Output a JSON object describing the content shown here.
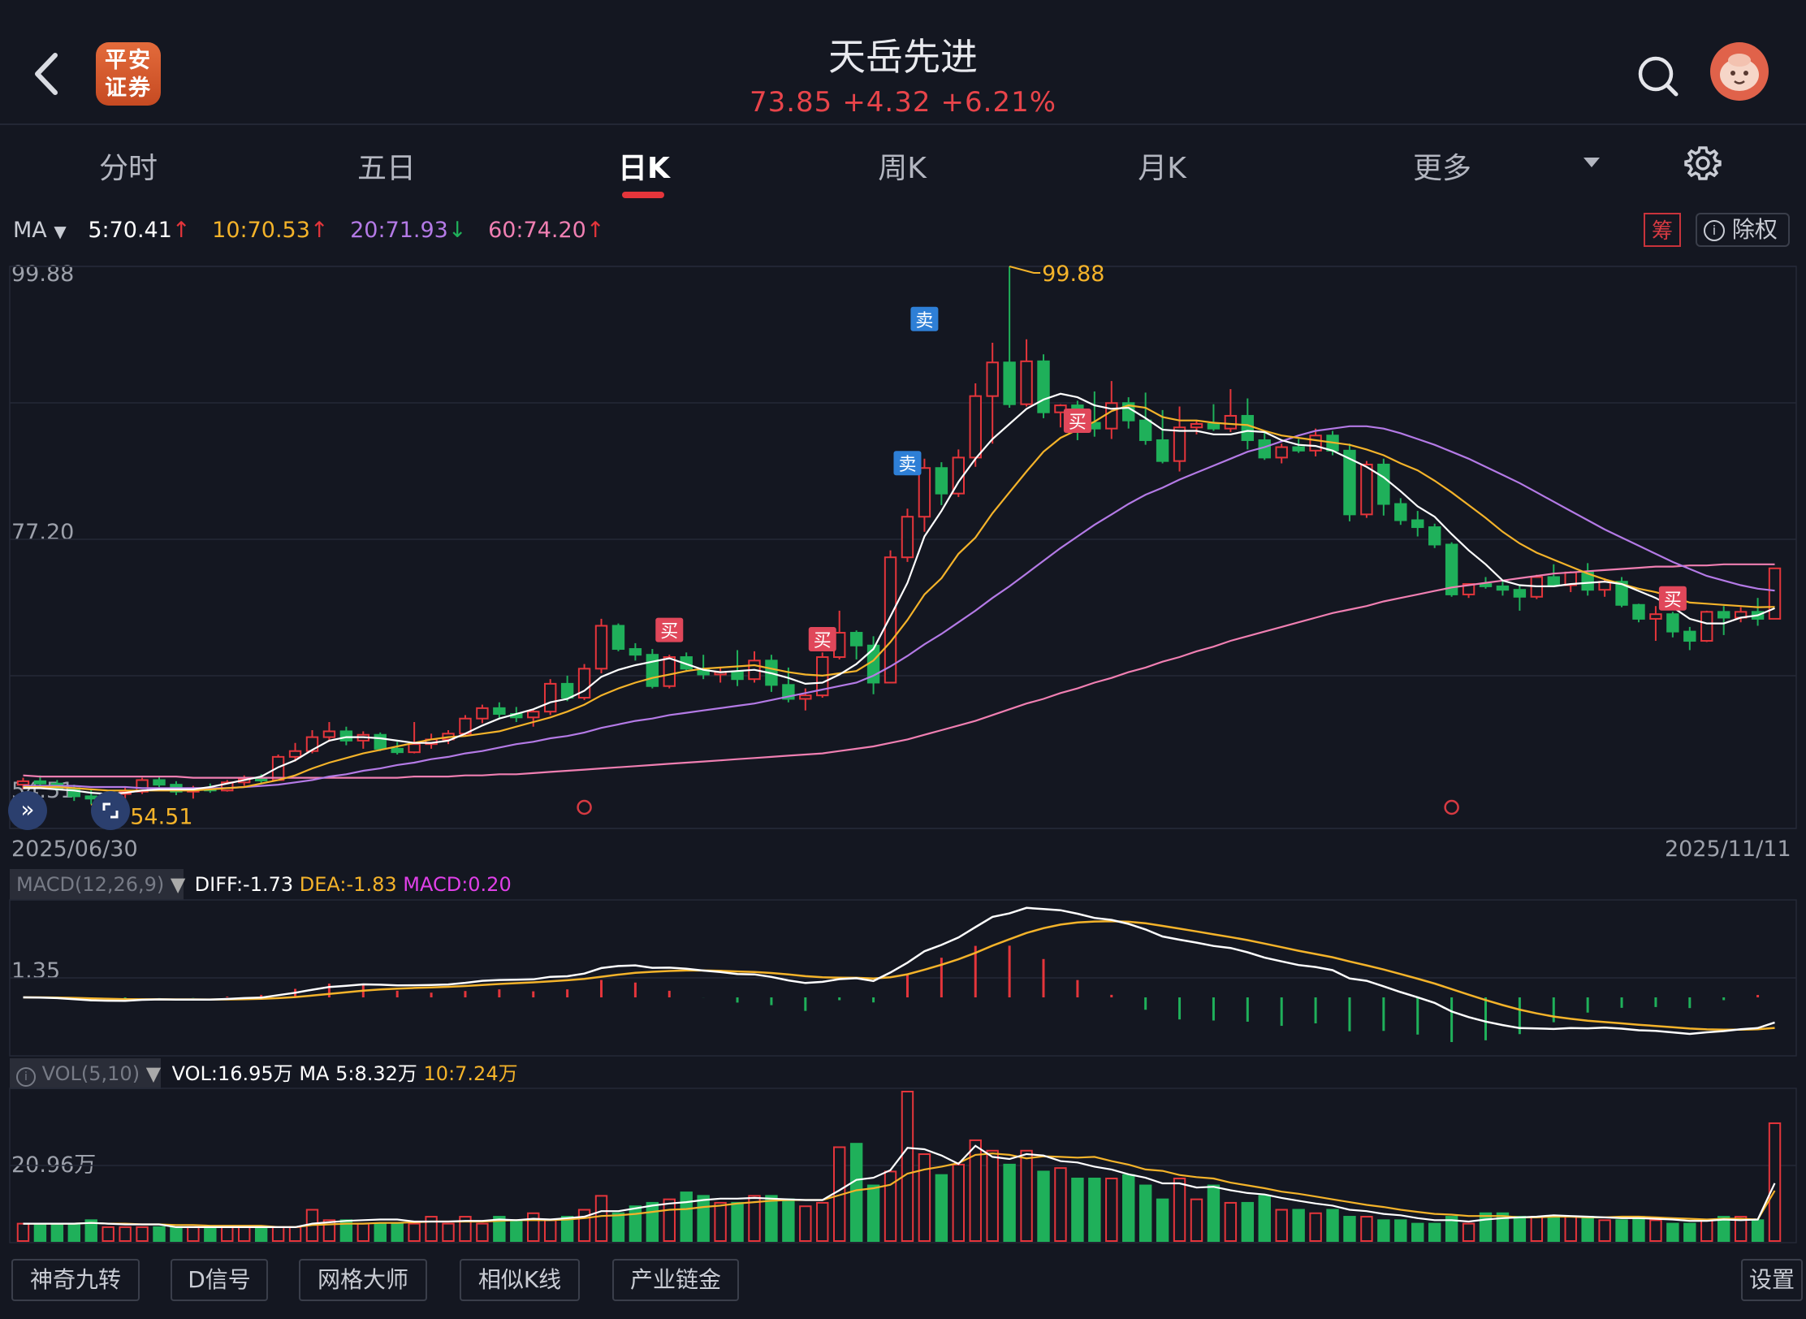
{
  "header": {
    "logo_line1": "平安",
    "logo_line2": "证券",
    "title": "天岳先进",
    "price": "73.85",
    "change": "+4.32",
    "change_pct": "+6.21%"
  },
  "tabs": [
    {
      "label": "分时",
      "active": false
    },
    {
      "label": "五日",
      "active": false
    },
    {
      "label": "日K",
      "active": true
    },
    {
      "label": "周K",
      "active": false
    },
    {
      "label": "月K",
      "active": false
    },
    {
      "label": "更多",
      "active": false
    }
  ],
  "ma_legend": {
    "name": "MA",
    "ma5": "5:70.41",
    "ma10": "10:70.53",
    "ma20": "20:71.93",
    "ma60": "60:74.20",
    "ma5_dir": "↑",
    "ma10_dir": "↑",
    "ma20_dir": "↓",
    "ma60_dir": "↑",
    "chip_label": "筹",
    "exright_label": "除权"
  },
  "price_axis": {
    "top": "99.88",
    "mid": "77.20",
    "low": "54.51"
  },
  "annotations": {
    "high_label": "99.88",
    "low_label": "54.51",
    "buy": "买",
    "sell": "卖"
  },
  "date_range": {
    "start": "2025/06/30",
    "end": "2025/11/11"
  },
  "macd": {
    "tag": "MACD(12,26,9)",
    "diff": "DIFF:-1.73",
    "dea": "DEA:-1.83",
    "macd": "MACD:0.20",
    "axis_label": "1.35"
  },
  "vol": {
    "tag": "VOL(5,10)",
    "vol": "VOL:16.95万",
    "ma5": "MA 5:8.32万",
    "ma10": "10:7.24万",
    "axis_label": "20.96万"
  },
  "bottom_tools": [
    "神奇九转",
    "D信号",
    "网格大师",
    "相似K线",
    "产业链金"
  ],
  "settings_label": "设置",
  "colors": {
    "up": "#e4353b",
    "down": "#1fb05a",
    "ma5": "#ffffff",
    "ma10": "#f4b32a",
    "ma20": "#b47ae6",
    "ma60": "#f07fb2"
  },
  "chart_data": {
    "type": "candlestick",
    "ohlc": [
      [
        55.2,
        55.8,
        54.8,
        55.5
      ],
      [
        55.5,
        56.0,
        55.0,
        55.3
      ],
      [
        55.3,
        55.6,
        54.7,
        54.9
      ],
      [
        54.9,
        55.2,
        53.8,
        54.2
      ],
      [
        54.2,
        54.8,
        53.5,
        54.0
      ],
      [
        54.0,
        54.6,
        53.9,
        54.4
      ],
      [
        54.4,
        55.0,
        54.0,
        54.6
      ],
      [
        54.6,
        55.8,
        54.4,
        55.6
      ],
      [
        55.6,
        55.9,
        55.0,
        55.2
      ],
      [
        55.2,
        55.5,
        54.3,
        54.6
      ],
      [
        54.6,
        55.1,
        54.0,
        54.9
      ],
      [
        54.9,
        55.3,
        54.5,
        54.7
      ],
      [
        54.7,
        55.6,
        54.6,
        55.4
      ],
      [
        55.4,
        56.0,
        55.1,
        55.7
      ],
      [
        55.7,
        56.1,
        55.3,
        55.6
      ],
      [
        55.6,
        57.8,
        55.6,
        57.6
      ],
      [
        57.6,
        58.8,
        57.2,
        58.1
      ],
      [
        58.1,
        59.9,
        57.9,
        59.3
      ],
      [
        59.3,
        60.6,
        58.9,
        59.8
      ],
      [
        59.8,
        60.2,
        58.6,
        59.0
      ],
      [
        59.0,
        59.8,
        58.3,
        59.5
      ],
      [
        59.5,
        59.7,
        58.1,
        58.3
      ],
      [
        58.3,
        58.9,
        57.8,
        58.0
      ],
      [
        58.0,
        60.6,
        57.9,
        58.7
      ],
      [
        58.7,
        59.6,
        58.3,
        59.1
      ],
      [
        59.1,
        59.9,
        58.7,
        59.6
      ],
      [
        59.6,
        61.2,
        59.4,
        60.9
      ],
      [
        60.9,
        62.1,
        60.5,
        61.8
      ],
      [
        61.8,
        62.3,
        60.9,
        61.3
      ],
      [
        61.3,
        61.9,
        60.6,
        61.0
      ],
      [
        61.0,
        61.7,
        60.2,
        61.5
      ],
      [
        61.5,
        64.3,
        61.2,
        63.9
      ],
      [
        63.9,
        64.6,
        62.4,
        62.7
      ],
      [
        62.7,
        65.6,
        62.5,
        65.2
      ],
      [
        65.2,
        69.5,
        64.8,
        68.9
      ],
      [
        68.9,
        69.1,
        66.7,
        66.9
      ],
      [
        66.9,
        67.4,
        65.9,
        66.4
      ],
      [
        66.4,
        66.9,
        63.5,
        63.7
      ],
      [
        63.7,
        66.4,
        63.5,
        66.2
      ],
      [
        66.2,
        66.6,
        65.0,
        65.2
      ],
      [
        65.2,
        66.4,
        64.3,
        64.7
      ],
      [
        64.7,
        65.3,
        64.0,
        64.9
      ],
      [
        64.9,
        66.8,
        63.7,
        64.3
      ],
      [
        64.3,
        66.7,
        64.0,
        65.9
      ],
      [
        65.9,
        66.4,
        63.2,
        63.8
      ],
      [
        63.8,
        65.3,
        62.3,
        62.6
      ],
      [
        62.6,
        63.5,
        61.6,
        62.9
      ],
      [
        62.9,
        66.6,
        62.7,
        66.2
      ],
      [
        66.2,
        70.2,
        66.0,
        68.3
      ],
      [
        68.3,
        68.5,
        66.0,
        67.2
      ],
      [
        67.2,
        68.0,
        63.0,
        64.0
      ],
      [
        64.0,
        75.4,
        64.0,
        74.8
      ],
      [
        74.8,
        79.0,
        74.4,
        78.3
      ],
      [
        78.3,
        83.3,
        77.0,
        82.5
      ],
      [
        82.5,
        83.0,
        79.3,
        80.3
      ],
      [
        80.3,
        84.1,
        80.0,
        83.4
      ],
      [
        83.4,
        89.8,
        82.6,
        88.7
      ],
      [
        88.7,
        93.3,
        84.6,
        91.6
      ],
      [
        91.6,
        99.88,
        87.7,
        88.0
      ],
      [
        88.0,
        93.6,
        87.8,
        91.7
      ],
      [
        91.7,
        92.3,
        86.8,
        87.3
      ],
      [
        87.3,
        88.0,
        86.0,
        87.9
      ],
      [
        87.9,
        88.3,
        84.9,
        86.4
      ],
      [
        86.4,
        89.1,
        85.2,
        85.9
      ],
      [
        85.9,
        90.0,
        85.0,
        88.1
      ],
      [
        88.1,
        88.6,
        85.9,
        86.6
      ],
      [
        86.6,
        89.0,
        84.5,
        84.9
      ],
      [
        84.9,
        87.5,
        82.9,
        83.1
      ],
      [
        83.1,
        87.8,
        82.2,
        86.0
      ],
      [
        86.0,
        86.6,
        85.4,
        86.3
      ],
      [
        86.3,
        88.0,
        85.7,
        85.9
      ],
      [
        85.9,
        89.3,
        85.6,
        87.0
      ],
      [
        87.0,
        88.5,
        84.1,
        84.9
      ],
      [
        84.9,
        85.7,
        83.2,
        83.4
      ],
      [
        83.4,
        84.6,
        82.9,
        84.3
      ],
      [
        84.3,
        85.0,
        83.8,
        84.0
      ],
      [
        84.0,
        85.9,
        83.5,
        85.3
      ],
      [
        85.3,
        85.7,
        83.6,
        84.0
      ],
      [
        84.0,
        84.6,
        77.9,
        78.5
      ],
      [
        78.5,
        83.1,
        78.2,
        82.8
      ],
      [
        82.8,
        83.3,
        78.4,
        79.4
      ],
      [
        79.4,
        79.9,
        77.6,
        78.0
      ],
      [
        78.0,
        78.8,
        76.6,
        77.4
      ],
      [
        77.4,
        77.7,
        75.6,
        75.9
      ],
      [
        75.9,
        76.1,
        71.4,
        71.6
      ],
      [
        71.6,
        72.5,
        71.3,
        72.5
      ],
      [
        72.5,
        73.1,
        72.1,
        72.3
      ],
      [
        72.3,
        72.8,
        71.5,
        72.0
      ],
      [
        72.0,
        72.4,
        70.2,
        71.4
      ],
      [
        71.4,
        73.3,
        71.2,
        73.1
      ],
      [
        73.1,
        74.2,
        72.3,
        72.4
      ],
      [
        72.4,
        73.6,
        71.8,
        73.5
      ],
      [
        73.5,
        74.3,
        71.5,
        72.0
      ],
      [
        72.0,
        73.0,
        71.4,
        72.7
      ],
      [
        72.7,
        73.1,
        70.5,
        70.7
      ],
      [
        70.7,
        70.8,
        69.2,
        69.5
      ],
      [
        69.5,
        70.6,
        67.6,
        69.9
      ],
      [
        69.9,
        70.1,
        67.9,
        68.4
      ],
      [
        68.4,
        68.8,
        66.8,
        67.6
      ],
      [
        67.6,
        70.2,
        67.5,
        70.1
      ],
      [
        70.1,
        70.6,
        68.1,
        69.6
      ],
      [
        69.6,
        70.5,
        69.2,
        70.1
      ],
      [
        70.1,
        71.3,
        68.9,
        69.5
      ],
      [
        69.5,
        73.9,
        69.5,
        73.85
      ]
    ],
    "ma5": [
      54.9,
      54.9,
      54.8,
      54.7,
      54.5,
      54.4,
      54.5,
      54.7,
      54.8,
      54.8,
      54.8,
      55.0,
      55.3,
      55.6,
      55.9,
      56.7,
      57.3,
      58.2,
      59.0,
      59.3,
      59.3,
      59.2,
      59.0,
      58.8,
      58.8,
      59.0,
      59.6,
      60.3,
      60.9,
      61.3,
      61.7,
      62.3,
      62.6,
      63.3,
      64.5,
      65.1,
      65.5,
      65.8,
      66.1,
      65.6,
      65.1,
      64.9,
      65.0,
      65.1,
      64.8,
      64.4,
      63.9,
      64.0,
      64.7,
      65.6,
      66.9,
      69.7,
      72.6,
      76.6,
      78.8,
      81.3,
      83.3,
      85.0,
      86.3,
      87.6,
      88.4,
      88.9,
      88.6,
      87.9,
      87.6,
      87.7,
      86.8,
      85.8,
      85.7,
      85.7,
      85.4,
      85.4,
      85.7,
      85.6,
      84.9,
      84.5,
      84.4,
      84.0,
      83.3,
      82.6,
      81.7,
      80.5,
      79.2,
      78.3,
      76.8,
      75.4,
      74.2,
      72.8,
      72.4,
      72.3,
      72.3,
      72.5,
      72.6,
      72.7,
      72.5,
      71.9,
      71.3,
      70.5,
      69.5,
      69.1,
      69.1,
      69.6,
      69.8,
      70.41
    ],
    "ma10": [
      55.0,
      55.0,
      55.0,
      54.9,
      54.8,
      54.7,
      54.7,
      54.7,
      54.7,
      54.7,
      54.7,
      54.8,
      54.9,
      55.0,
      55.3,
      55.6,
      56.0,
      56.6,
      57.1,
      57.5,
      57.9,
      58.2,
      58.5,
      58.8,
      59.1,
      59.3,
      59.4,
      59.6,
      59.8,
      60.2,
      60.6,
      61.0,
      61.5,
      62.1,
      62.9,
      63.5,
      64.0,
      64.4,
      64.7,
      65.0,
      65.2,
      65.3,
      65.4,
      65.5,
      65.2,
      64.9,
      64.7,
      64.6,
      64.8,
      65.0,
      65.9,
      67.5,
      69.4,
      71.6,
      73.0,
      75.1,
      76.5,
      78.6,
      80.4,
      82.2,
      83.9,
      85.1,
      85.8,
      86.5,
      87.4,
      87.9,
      87.7,
      86.9,
      86.6,
      86.6,
      86.4,
      86.3,
      86.2,
      85.7,
      85.3,
      85.1,
      84.9,
      84.7,
      84.5,
      84.1,
      83.6,
      82.9,
      82.3,
      81.4,
      80.4,
      79.3,
      78.2,
      77.0,
      76.0,
      75.2,
      74.6,
      74.0,
      73.4,
      72.9,
      72.5,
      72.1,
      71.8,
      71.4,
      70.9,
      70.8,
      70.7,
      70.6,
      70.5,
      70.53
    ],
    "ma20": [
      55.1,
      55.1,
      55.1,
      55.1,
      55.0,
      55.0,
      55.0,
      54.9,
      54.9,
      54.9,
      54.9,
      54.9,
      54.9,
      55.0,
      55.1,
      55.2,
      55.4,
      55.6,
      55.9,
      56.1,
      56.4,
      56.6,
      56.9,
      57.1,
      57.4,
      57.6,
      57.9,
      58.1,
      58.4,
      58.7,
      58.9,
      59.2,
      59.4,
      59.7,
      60.1,
      60.4,
      60.7,
      60.9,
      61.2,
      61.4,
      61.6,
      61.8,
      62.0,
      62.2,
      62.5,
      62.8,
      63.1,
      63.4,
      63.7,
      64.0,
      64.6,
      65.4,
      66.3,
      67.3,
      68.2,
      69.2,
      70.2,
      71.3,
      72.3,
      73.4,
      74.5,
      75.6,
      76.6,
      77.6,
      78.5,
      79.4,
      80.2,
      80.8,
      81.5,
      82.1,
      82.7,
      83.3,
      83.9,
      84.3,
      84.8,
      85.3,
      85.7,
      85.9,
      86.1,
      86.1,
      85.9,
      85.5,
      85.0,
      84.5,
      83.9,
      83.3,
      82.6,
      81.9,
      81.2,
      80.4,
      79.6,
      78.8,
      78.0,
      77.2,
      76.5,
      75.8,
      75.1,
      74.4,
      73.8,
      73.2,
      72.8,
      72.4,
      72.1,
      71.93
    ],
    "ma60": [
      56.0,
      55.9,
      55.9,
      55.9,
      55.9,
      55.9,
      55.9,
      55.9,
      55.9,
      55.9,
      55.8,
      55.8,
      55.8,
      55.8,
      55.8,
      55.8,
      55.8,
      55.8,
      55.8,
      55.8,
      55.8,
      55.8,
      55.8,
      55.9,
      55.9,
      55.9,
      56.0,
      56.0,
      56.1,
      56.1,
      56.2,
      56.3,
      56.4,
      56.5,
      56.6,
      56.7,
      56.8,
      56.9,
      57.0,
      57.1,
      57.2,
      57.3,
      57.4,
      57.5,
      57.6,
      57.7,
      57.8,
      57.9,
      58.1,
      58.3,
      58.5,
      58.8,
      59.1,
      59.5,
      59.9,
      60.3,
      60.7,
      61.2,
      61.7,
      62.2,
      62.6,
      63.1,
      63.5,
      64.0,
      64.4,
      64.9,
      65.3,
      65.8,
      66.2,
      66.7,
      67.1,
      67.6,
      68.0,
      68.4,
      68.8,
      69.2,
      69.6,
      70.0,
      70.3,
      70.6,
      71.0,
      71.3,
      71.6,
      71.9,
      72.2,
      72.4,
      72.6,
      72.8,
      73.0,
      73.2,
      73.4,
      73.5,
      73.6,
      73.7,
      73.8,
      73.9,
      74.0,
      74.0,
      74.1,
      74.1,
      74.2,
      74.2,
      74.2,
      74.2
    ],
    "y_range": [
      54.51,
      99.88
    ],
    "volume_wan": [
      2.5,
      2.5,
      2.5,
      2.5,
      3.0,
      2.0,
      2.0,
      2.0,
      2.0,
      2.0,
      2.0,
      2.0,
      2.0,
      2.0,
      2.0,
      2.0,
      2.0,
      4.5,
      3.0,
      3.0,
      2.5,
      2.5,
      2.5,
      2.5,
      3.5,
      2.5,
      3.5,
      2.5,
      3.5,
      3.0,
      4.0,
      3.0,
      3.5,
      4.5,
      6.5,
      4.0,
      5.0,
      5.5,
      6.0,
      7.0,
      6.5,
      5.5,
      5.5,
      6.5,
      6.5,
      6.0,
      5.0,
      5.5,
      13.5,
      14.0,
      8.0,
      10.0,
      21.5,
      12.5,
      9.5,
      11.0,
      14.5,
      13.0,
      11.0,
      13.0,
      10.0,
      10.5,
      9.0,
      9.0,
      9.0,
      9.5,
      8.0,
      6.0,
      9.0,
      6.0,
      8.0,
      5.5,
      5.5,
      6.5,
      4.5,
      4.5,
      4.0,
      4.5,
      3.5,
      3.5,
      3.0,
      3.0,
      2.5,
      2.5,
      3.5,
      2.5,
      4.0,
      4.0,
      3.5,
      3.5,
      3.5,
      3.5,
      3.5,
      3.0,
      3.0,
      3.5,
      3.0,
      2.5,
      2.5,
      3.0,
      3.5,
      3.5,
      3.0,
      16.95
    ],
    "vol_ma5_wan": [
      2.5,
      2.5,
      2.5,
      2.5,
      2.6,
      2.5,
      2.4,
      2.4,
      2.4,
      2.0,
      2.0,
      2.0,
      2.0,
      2.0,
      2.0,
      2.0,
      2.0,
      2.5,
      2.7,
      2.9,
      3.0,
      3.1,
      3.1,
      2.8,
      2.8,
      2.8,
      2.9,
      2.9,
      3.1,
      3.0,
      3.2,
      3.1,
      3.3,
      3.5,
      4.3,
      4.3,
      4.7,
      5.1,
      5.4,
      5.6,
      5.9,
      6.1,
      6.1,
      6.2,
      6.1,
      6.0,
      5.9,
      5.9,
      7.3,
      8.8,
      9.1,
      10.2,
      13.4,
      13.2,
      12.3,
      11.1,
      13.7,
      12.1,
      11.8,
      12.5,
      12.3,
      11.5,
      11.3,
      10.7,
      10.3,
      9.6,
      9.1,
      8.3,
      8.3,
      7.7,
      7.8,
      7.3,
      6.9,
      6.7,
      6.2,
      5.8,
      5.4,
      5.1,
      4.5,
      4.3,
      3.9,
      3.7,
      3.3,
      3.0,
      3.0,
      2.8,
      3.1,
      3.3,
      3.4,
      3.5,
      3.7,
      3.6,
      3.5,
      3.4,
      3.3,
      3.3,
      3.2,
      3.1,
      2.9,
      2.9,
      3.1,
      3.0,
      3.1,
      8.32
    ],
    "vol_ma10_wan": [
      2.5,
      2.5,
      2.5,
      2.5,
      2.6,
      2.5,
      2.5,
      2.4,
      2.4,
      2.3,
      2.3,
      2.2,
      2.2,
      2.2,
      2.2,
      2.0,
      2.0,
      2.3,
      2.4,
      2.5,
      2.5,
      2.6,
      2.6,
      2.7,
      2.8,
      2.8,
      2.8,
      2.8,
      2.9,
      3.0,
      3.0,
      3.0,
      3.1,
      3.3,
      3.6,
      3.7,
      3.9,
      4.2,
      4.5,
      4.6,
      4.9,
      5.1,
      5.4,
      5.6,
      5.8,
      5.9,
      5.9,
      5.9,
      6.6,
      7.3,
      7.6,
      8.1,
      9.7,
      10.3,
      10.7,
      11.2,
      12.4,
      12.6,
      12.4,
      11.9,
      12.2,
      12.1,
      12.0,
      12.1,
      11.5,
      11.0,
      10.3,
      10.1,
      9.5,
      9.2,
      9.0,
      8.4,
      8.0,
      7.6,
      7.1,
      6.8,
      6.4,
      6.0,
      5.6,
      5.2,
      4.9,
      4.5,
      4.2,
      3.9,
      3.8,
      3.6,
      3.6,
      3.6,
      3.4,
      3.4,
      3.5,
      3.5,
      3.4,
      3.4,
      3.5,
      3.5,
      3.4,
      3.3,
      3.2,
      3.1,
      3.2,
      3.2,
      3.1,
      7.24
    ]
  }
}
